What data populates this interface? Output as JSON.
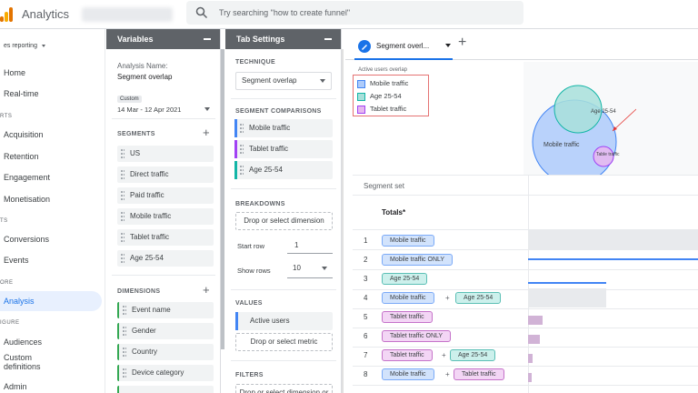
{
  "app": {
    "brand": "Analytics",
    "search_placeholder": "Try searching \"how to create funnel\""
  },
  "nav": {
    "reports_label": "es reporting",
    "section_reports": "RTS",
    "section_lifecycle": "TS",
    "section_explore": "ORE",
    "section_configure": "IGURE",
    "items": [
      "Home",
      "Real-time",
      "Acquisition",
      "Retention",
      "Engagement",
      "Monetisation",
      "Conversions",
      "Events",
      "Analysis",
      "Audiences",
      "Custom definitions",
      "Admin"
    ]
  },
  "variables": {
    "header": "Variables",
    "analysis_name_label": "Analysis Name:",
    "analysis_name": "Segment overlap",
    "date_tag": "Custom",
    "date_range": "14 Mar - 12 Apr 2021",
    "segments_title": "SEGMENTS",
    "segments": [
      "US",
      "Direct traffic",
      "Paid traffic",
      "Mobile traffic",
      "Tablet traffic",
      "Age 25-54"
    ],
    "dimensions_title": "DIMENSIONS",
    "dimensions": [
      "Event name",
      "Gender",
      "Country",
      "Device category"
    ]
  },
  "tab_settings": {
    "header": "Tab Settings",
    "technique_title": "TECHNIQUE",
    "technique_value": "Segment overlap",
    "segment_comparisons_title": "SEGMENT COMPARISONS",
    "comparisons": [
      {
        "label": "Mobile traffic",
        "color": "#4285f4"
      },
      {
        "label": "Tablet traffic",
        "color": "#a142f4"
      },
      {
        "label": "Age 25-54",
        "color": "#12b5a6"
      }
    ],
    "breakdowns_title": "BREAKDOWNS",
    "drop_dimension": "Drop or select dimension",
    "start_row_label": "Start row",
    "start_row_value": "1",
    "show_rows_label": "Show rows",
    "show_rows_value": "10",
    "values_title": "VALUES",
    "value_metric": "Active users",
    "drop_metric": "Drop or select metric",
    "filters_title": "FILTERS",
    "drop_filter": "Drop or select dimension or"
  },
  "canvas": {
    "tab_name": "Segment overl...",
    "legend_title": "Active users overlap",
    "legend": [
      {
        "label": "Mobile traffic",
        "color": "#aecbfa",
        "border": "#4285f4"
      },
      {
        "label": "Age 25-54",
        "color": "#a8e0da",
        "border": "#12b5a6"
      },
      {
        "label": "Tablet traffic",
        "color": "#e6b8ef",
        "border": "#a142f4"
      }
    ],
    "venn_labels": {
      "mobile": "Mobile traffic",
      "age": "Age 25-54",
      "tablet": "Table traffic"
    },
    "segment_set_label": "Segment set",
    "totals_label": "Totals*",
    "rows": [
      {
        "num": "1",
        "chips": [
          {
            "label": "Mobile traffic",
            "kind": "blue"
          }
        ]
      },
      {
        "num": "2",
        "chips": [
          {
            "label": "Mobile traffic ONLY",
            "kind": "blue"
          }
        ]
      },
      {
        "num": "3",
        "chips": [
          {
            "label": "Age 25-54",
            "kind": "teal"
          }
        ]
      },
      {
        "num": "4",
        "chips": [
          {
            "label": "Mobile traffic",
            "kind": "blue"
          },
          {
            "label": "Age 25-54",
            "kind": "teal"
          }
        ]
      },
      {
        "num": "5",
        "chips": [
          {
            "label": "Tablet traffic",
            "kind": "purple"
          }
        ]
      },
      {
        "num": "6",
        "chips": [
          {
            "label": "Tablet traffic ONLY",
            "kind": "purple"
          }
        ]
      },
      {
        "num": "7",
        "chips": [
          {
            "label": "Tablet traffic",
            "kind": "purple"
          },
          {
            "label": "Age 25-54",
            "kind": "teal"
          }
        ]
      },
      {
        "num": "8",
        "chips": [
          {
            "label": "Mobile traffic",
            "kind": "blue"
          },
          {
            "label": "Tablet traffic",
            "kind": "purple"
          }
        ]
      }
    ],
    "plus_sign": "+"
  }
}
